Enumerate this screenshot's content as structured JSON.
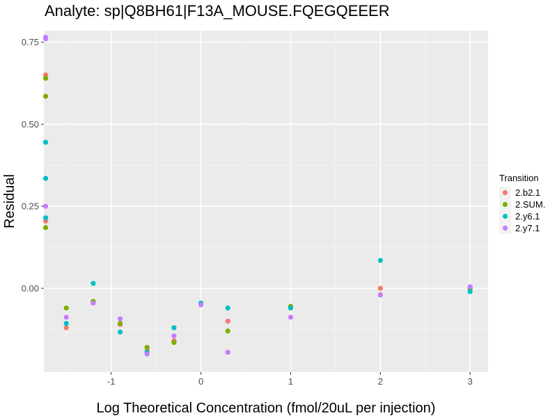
{
  "chart_data": {
    "type": "scatter",
    "title": "Analyte: sp|Q8BH61|F13A_MOUSE.FQEGQEEER",
    "xlabel": "Log Theoretical Concentration (fmol/20uL per injection)",
    "ylabel": "Residual",
    "xlim": [
      -1.75,
      3.2
    ],
    "ylim": [
      -0.255,
      0.785
    ],
    "x_ticks": [
      -1,
      0,
      1,
      2,
      3
    ],
    "x_tick_labels": [
      "-1",
      "0",
      "1",
      "2",
      "3"
    ],
    "y_ticks": [
      0.0,
      0.25,
      0.5,
      0.75
    ],
    "y_tick_labels": [
      "0.00",
      "0.25",
      "0.50",
      "0.75"
    ],
    "grid": true,
    "legend": {
      "title": "Transition",
      "position": "right"
    },
    "series": [
      {
        "name": "2.b2.1",
        "color": "#F8766D",
        "x": [
          -1.73,
          -1.73,
          -1.5,
          -1.2,
          -0.9,
          -0.6,
          -0.3,
          0.3,
          1.0,
          2.0,
          3.0
        ],
        "y": [
          0.65,
          0.205,
          -0.12,
          -0.04,
          -0.11,
          -0.19,
          -0.16,
          -0.1,
          -0.055,
          0.0,
          0.0
        ]
      },
      {
        "name": "2.SUM.",
        "color": "#7CAE00",
        "x": [
          -1.73,
          -1.73,
          -1.73,
          -1.5,
          -1.2,
          -0.9,
          -0.6,
          -0.3,
          0.3,
          1.0,
          2.0,
          3.0
        ],
        "y": [
          0.64,
          0.585,
          0.185,
          -0.06,
          -0.04,
          -0.107,
          -0.18,
          -0.165,
          -0.13,
          -0.055,
          -0.02,
          0.0
        ]
      },
      {
        "name": "2.y6.1",
        "color": "#00BFC4",
        "x": [
          -1.73,
          -1.73,
          -1.73,
          -1.5,
          -1.2,
          -0.9,
          -0.6,
          -0.3,
          0.0,
          0.3,
          1.0,
          2.0,
          3.0
        ],
        "y": [
          0.445,
          0.335,
          0.215,
          -0.107,
          0.015,
          -0.133,
          -0.195,
          -0.12,
          -0.045,
          -0.06,
          -0.06,
          0.085,
          -0.01
        ]
      },
      {
        "name": "2.y7.1",
        "color": "#C77CFF",
        "x": [
          -1.73,
          -1.73,
          -1.73,
          -1.5,
          -1.2,
          -0.9,
          -0.6,
          -0.3,
          0.0,
          0.3,
          1.0,
          2.0,
          3.0
        ],
        "y": [
          0.765,
          0.76,
          0.25,
          -0.088,
          -0.045,
          -0.093,
          -0.2,
          -0.145,
          -0.05,
          -0.195,
          -0.088,
          -0.02,
          0.005
        ]
      }
    ]
  }
}
